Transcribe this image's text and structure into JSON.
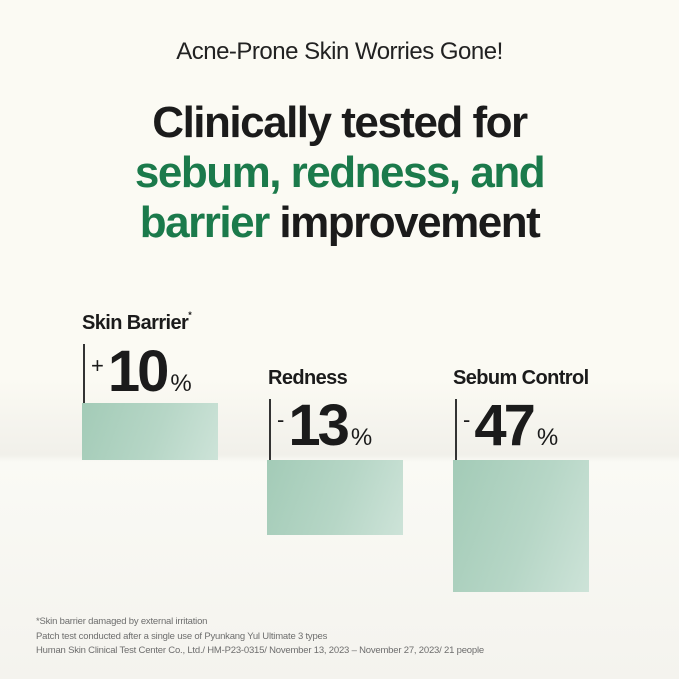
{
  "header": {
    "kicker": "Acne-Prone Skin Worries Gone!",
    "headline_line1": "Clinically tested for",
    "headline_line2": "sebum, redness, and",
    "headline_line3_green": "barrier",
    "headline_line3_rest": " improvement"
  },
  "colors": {
    "accent_green": "#1b7a4b",
    "bar_green": "#a3cbb7",
    "background": "#fbfaf3"
  },
  "results": [
    {
      "label": "Skin Barrier",
      "asterisk": "*",
      "sign": "+",
      "value": "10",
      "unit": "%"
    },
    {
      "label": "Redness",
      "asterisk": "",
      "sign": "-",
      "value": "13",
      "unit": "%"
    },
    {
      "label": "Sebum Control",
      "asterisk": "",
      "sign": "-",
      "value": "47",
      "unit": "%"
    }
  ],
  "footnotes": [
    "*Skin barrier damaged by external irritation",
    "Patch test conducted after a single use of Pyunkang Yul Ultimate 3 types",
    "Human Skin Clinical Test Center Co., Ltd./ HM-P23-0315/ November 13, 2023 – November 27, 2023/ 21 people"
  ]
}
